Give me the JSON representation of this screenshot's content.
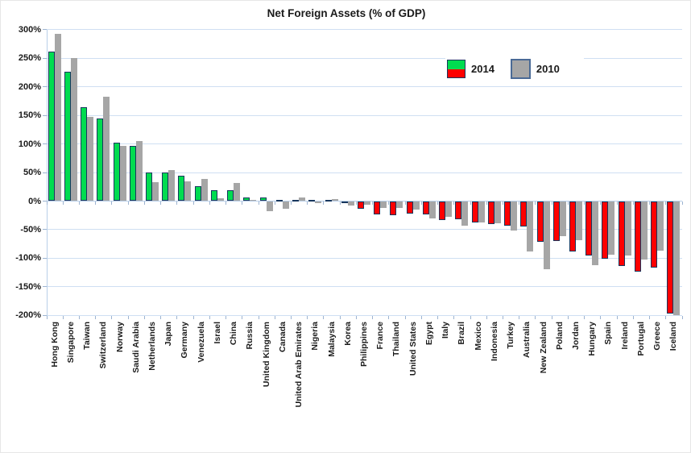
{
  "colors": {
    "positive_2014": "#00DC50",
    "negative_2014": "#FE0000",
    "bar_border_2014": "#17375E",
    "bar_2010": "#A6A6A6",
    "legend_2010_border": "#4A6A96",
    "gridline": "#CFDFF2",
    "axis_text": "#1A1A1A"
  },
  "chart_data": {
    "type": "bar",
    "title": "Net Foreign Assets (% of GDP)",
    "xlabel": "",
    "ylabel": "",
    "ylim": [
      -200,
      300
    ],
    "ytick_step": 50,
    "y_ticks": [
      "300%",
      "250%",
      "200%",
      "150%",
      "100%",
      "50%",
      "0%",
      "-50%",
      "-100%",
      "-150%",
      "-200%"
    ],
    "grid": true,
    "legend_position": "top-center",
    "categories": [
      "Hong Kong",
      "Singapore",
      "Taiwan",
      "Switzerland",
      "Norway",
      "Saudi Arabia",
      "Netherlands",
      "Japan",
      "Germany",
      "Venezuela",
      "Israel",
      "China",
      "Russia",
      "United Kingdom",
      "Canada",
      "United Arab Emirates",
      "Nigeria",
      "Malaysia",
      "Korea",
      "Philippines",
      "France",
      "Thailand",
      "United States",
      "Egypt",
      "Italy",
      "Brazil",
      "Mexico",
      "Indonesia",
      "Turkey",
      "Australia",
      "New Zealand",
      "Poland",
      "Jordan",
      "Hungary",
      "Spain",
      "Ireland",
      "Portugal",
      "Greece",
      "Iceland"
    ],
    "series": [
      {
        "name": "2014",
        "values": [
          262,
          227,
          165,
          145,
          102,
          97,
          50,
          50,
          45,
          26,
          19,
          19,
          7,
          7,
          2,
          2,
          2,
          2,
          -3,
          -13,
          -23,
          -24,
          -22,
          -23,
          -33,
          -32,
          -38,
          -40,
          -43,
          -45,
          -71,
          -70,
          -88,
          -95,
          -101,
          -114,
          -124,
          -117,
          -197
        ]
      },
      {
        "name": "2010",
        "values": [
          292,
          251,
          148,
          182,
          97,
          105,
          33,
          55,
          34,
          39,
          5,
          32,
          2,
          -17,
          -13,
          6,
          -3,
          3,
          -8,
          -6,
          -12,
          -12,
          -15,
          -30,
          -27,
          -43,
          -37,
          -39,
          -51,
          -88,
          -119,
          -62,
          -68,
          -112,
          -94,
          -95,
          -102,
          -87,
          -200
        ]
      }
    ]
  }
}
